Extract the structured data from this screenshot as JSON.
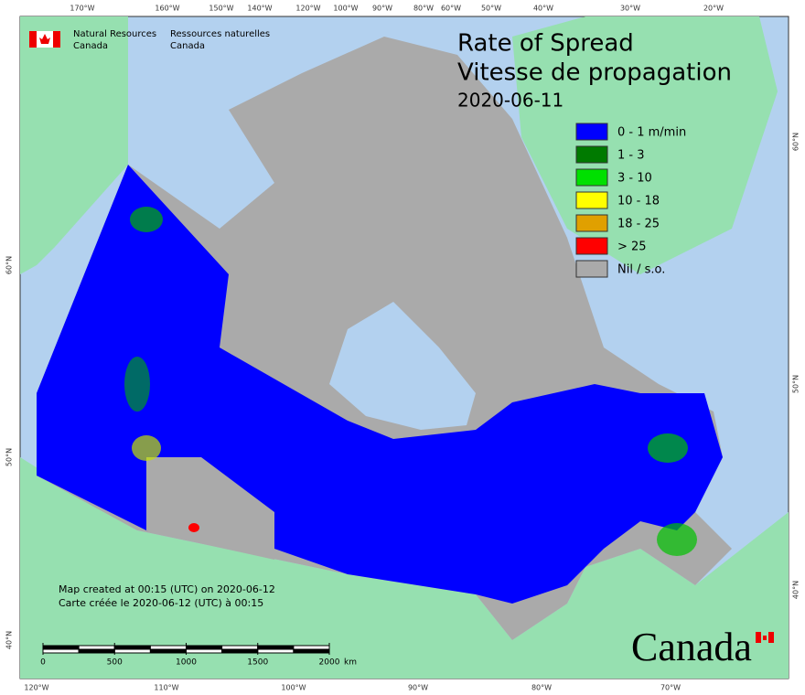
{
  "header": {
    "ministry_en": [
      "Natural Resources",
      "Canada"
    ],
    "ministry_fr": [
      "Ressources naturelles",
      "Canada"
    ]
  },
  "title": [
    "Rate of Spread",
    "Vitesse de propagation"
  ],
  "date": "2020-06-11",
  "legend": [
    {
      "label": "0 - 1 m/min",
      "color": "#0000ff"
    },
    {
      "label": "1 - 3",
      "color": "#007a00"
    },
    {
      "label": "3 - 10",
      "color": "#00e000"
    },
    {
      "label": "10 - 18",
      "color": "#ffff00"
    },
    {
      "label": "18 - 25",
      "color": "#e0a000"
    },
    {
      "label": "> 25",
      "color": "#ff0000"
    },
    {
      "label": "Nil / s.o.",
      "color": "#aaaaaa"
    }
  ],
  "graticule": {
    "top": [
      "170°W",
      "160°W",
      "150°W",
      "140°W",
      "120°W",
      "100°W",
      "90°W",
      "80°W",
      "60°W",
      "50°W",
      "40°W",
      "30°W",
      "20°W"
    ],
    "bottom": [
      "120°W",
      "110°W",
      "100°W",
      "90°W",
      "80°W",
      "70°W"
    ],
    "left": [
      "60°N",
      "50°N",
      "40°N"
    ],
    "right": [
      "60°N",
      "50°N",
      "40°N"
    ]
  },
  "footer": [
    "Map created at 00:15 (UTC) on 2020-06-12",
    "Carte créée le 2020-06-12 (UTC) à 00:15"
  ],
  "scale": {
    "ticks": [
      0,
      500,
      1000,
      1500,
      2000
    ],
    "unit": "km"
  },
  "wordmark": "Canada"
}
